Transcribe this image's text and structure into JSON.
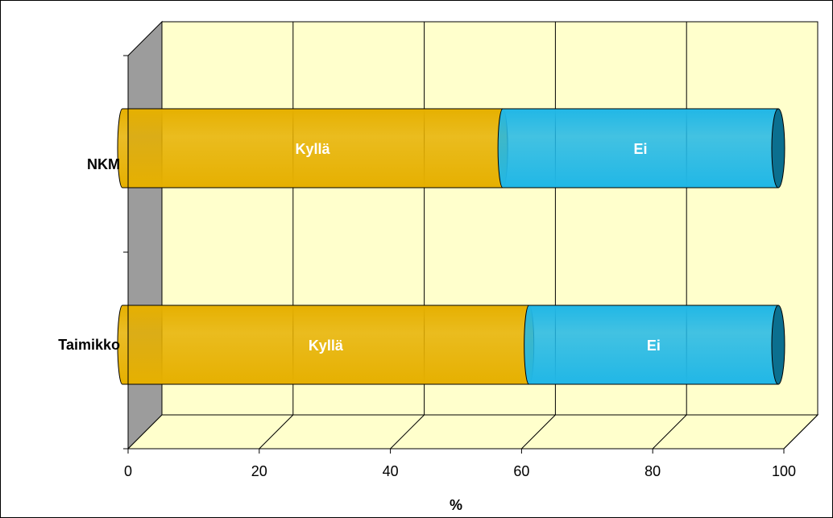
{
  "chart_data": {
    "type": "bar",
    "orientation": "horizontal",
    "stacked": true,
    "percent_stacked": true,
    "three_d": true,
    "categories": [
      "NKM",
      "Taimikko"
    ],
    "series": [
      {
        "name": "Kyllä",
        "values": [
          58,
          62
        ],
        "color": "#e6b000"
      },
      {
        "name": "Ei",
        "values": [
          42,
          38
        ],
        "color": "#21b7e6"
      }
    ],
    "xlabel": "%",
    "ylabel": "",
    "xlim": [
      0,
      100
    ],
    "xticks": [
      0,
      20,
      40,
      60,
      80,
      100
    ],
    "grid": true,
    "legend": "none",
    "colors": {
      "wall": "#ffffcc",
      "side_wall": "#9c9c9c",
      "gridline": "#000000"
    }
  }
}
